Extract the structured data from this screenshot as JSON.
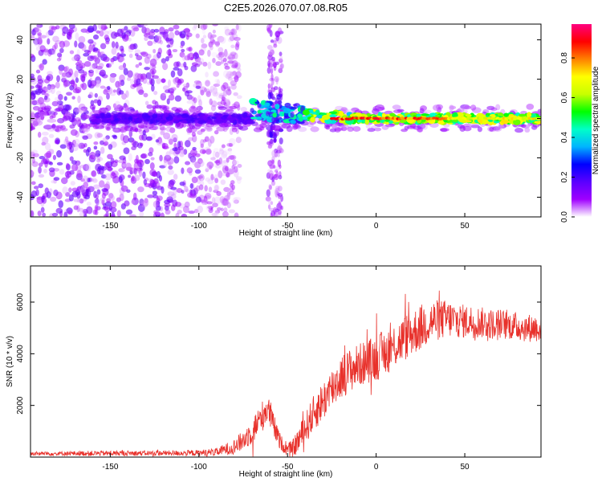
{
  "title": "C2E5.2026.070.07.08.R05",
  "colors": {
    "snr_line": "#e8312b",
    "colormap": [
      "#ffffff",
      "#a000ff",
      "#5a00ff",
      "#0000ff",
      "#00b4ff",
      "#00ffc8",
      "#00ff00",
      "#c8ff00",
      "#ffff00",
      "#ff8000",
      "#ff0000",
      "#ff0080"
    ]
  },
  "chart_data": [
    {
      "type": "heatmap",
      "title": "",
      "xlabel": "Height of straight line (km)",
      "ylabel": "Frequency (Hz)",
      "xlim": [
        -195,
        93
      ],
      "ylim": [
        -50,
        48
      ],
      "x_ticks": [
        -150,
        -100,
        -50,
        0,
        50
      ],
      "y_ticks": [
        -40,
        -20,
        0,
        20,
        40
      ],
      "colorbar": {
        "label": "Normalized spectral amplitude",
        "range": [
          0,
          0.97
        ],
        "ticks": [
          0.0,
          0.2,
          0.4,
          0.6,
          0.8
        ]
      },
      "description_features": {
        "noise_region_x": [
          -195,
          -85
        ],
        "gap_region_x": [
          -85,
          -62
        ],
        "spike_at_x": -57,
        "narrowband_line_freq": 0,
        "signal_onset_x": -70
      }
    },
    {
      "type": "line",
      "title": "",
      "xlabel": "Height of straight line (km)",
      "ylabel": "SNR (10 * v/v)",
      "xlim": [
        -195,
        93
      ],
      "ylim": [
        0,
        7400
      ],
      "x_ticks": [
        -150,
        -100,
        -50,
        0,
        50
      ],
      "y_ticks": [
        2000,
        4000,
        6000
      ],
      "series": [
        {
          "name": "",
          "x": [
            -195,
            -180,
            -160,
            -140,
            -120,
            -100,
            -90,
            -80,
            -75,
            -70,
            -65,
            -62,
            -60,
            -58,
            -55,
            -52,
            -50,
            -47,
            -44,
            -40,
            -36,
            -32,
            -28,
            -24,
            -20,
            -15,
            -10,
            -5,
            0,
            5,
            10,
            15,
            20,
            25,
            28,
            30,
            35,
            40,
            45,
            50,
            55,
            60,
            65,
            70,
            75,
            80,
            85,
            90,
            93
          ],
          "y": [
            130,
            140,
            145,
            150,
            150,
            160,
            200,
            400,
            650,
            1000,
            1500,
            1850,
            1700,
            1250,
            700,
            400,
            280,
            320,
            650,
            1100,
            1600,
            2000,
            2350,
            2750,
            3100,
            3350,
            3550,
            3700,
            3850,
            4050,
            4300,
            4550,
            4800,
            5000,
            5150,
            5250,
            5300,
            5350,
            5300,
            5250,
            5250,
            5200,
            5150,
            5150,
            5100,
            5050,
            5000,
            5000,
            5000
          ],
          "noise_amplitude": [
            80,
            80,
            100,
            100,
            100,
            120,
            150,
            300,
            400,
            500,
            600,
            600,
            600,
            500,
            350,
            250,
            250,
            350,
            500,
            600,
            700,
            750,
            800,
            850,
            850,
            850,
            850,
            850,
            900,
            900,
            900,
            900,
            900,
            900,
            900,
            850,
            800,
            750,
            700,
            650,
            650,
            600,
            600,
            600,
            550,
            550,
            550,
            550,
            550
          ]
        }
      ]
    }
  ]
}
